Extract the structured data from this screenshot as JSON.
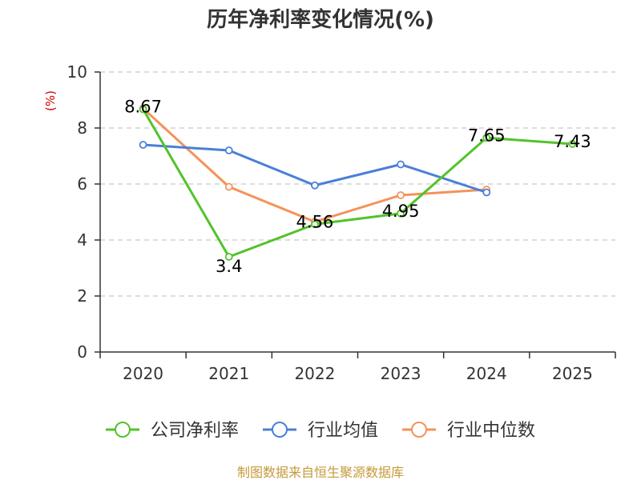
{
  "chart_data": {
    "type": "line",
    "title": "历年净利率变化情况(%)",
    "ylabel": "(%)",
    "xlabel": "",
    "categories": [
      "2020",
      "2021",
      "2022",
      "2023",
      "2024",
      "2025"
    ],
    "ylim": [
      0,
      10
    ],
    "yticks": [
      0,
      2,
      4,
      6,
      8,
      10
    ],
    "grid": true,
    "legend_position": "bottom",
    "series": [
      {
        "name": "公司净利率",
        "color": "#52c32a",
        "values": [
          8.67,
          3.4,
          4.56,
          4.95,
          7.65,
          7.43
        ],
        "labels": [
          "8.67",
          "3.4",
          "4.56",
          "4.95",
          "7.65",
          "7.43"
        ]
      },
      {
        "name": "行业均值",
        "color": "#4a7fd8",
        "values": [
          7.4,
          7.2,
          5.95,
          6.7,
          5.7,
          null
        ],
        "labels": []
      },
      {
        "name": "行业中位数",
        "color": "#f5925a",
        "values": [
          8.7,
          5.9,
          4.65,
          5.6,
          5.8,
          null
        ],
        "labels": []
      }
    ]
  },
  "footer": {
    "source": "制图数据来自恒生聚源数据库"
  }
}
